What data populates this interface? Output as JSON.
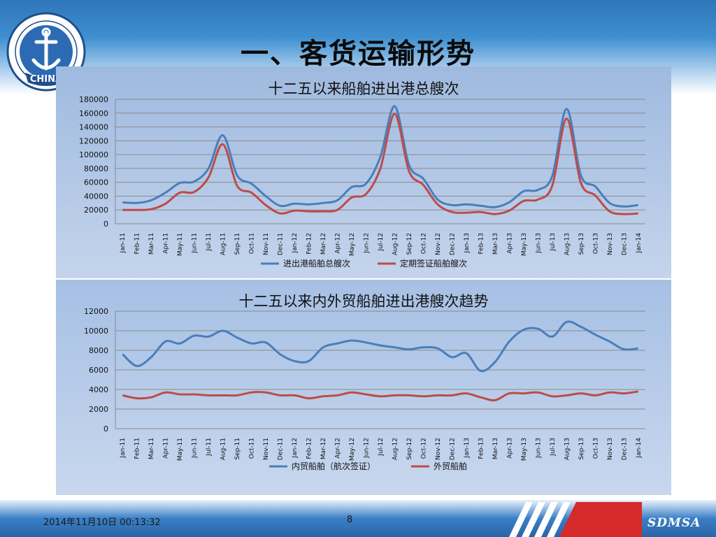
{
  "slide": {
    "title": "一、客货运输形势",
    "footer_date": "2014年11月10日  00:13:32",
    "page_number": "8",
    "brand": "SDMSA",
    "logo_text": "CHINA"
  },
  "colors": {
    "blue_series": "#4a7ebb",
    "red_series": "#be4b48"
  },
  "chart_data": [
    {
      "type": "line",
      "title": "十二五以来船舶进出港总艘次",
      "xlabel": "",
      "ylabel": "",
      "ylim": [
        0,
        180000
      ],
      "yticks": [
        "180000",
        "160000",
        "140000",
        "120000",
        "100000",
        "80000",
        "60000",
        "40000",
        "20000",
        "0"
      ],
      "legend_position": "bottom",
      "categories": [
        "Jan-11",
        "Feb-11",
        "Mar-11",
        "Apr-11",
        "May-11",
        "Jun-11",
        "Jul-11",
        "Aug-11",
        "Sep-11",
        "Oct-11",
        "Nov-11",
        "Dec-11",
        "Jan-12",
        "Feb-12",
        "Mar-12",
        "Apr-12",
        "May-12",
        "Jun-12",
        "Jul-12",
        "Aug-12",
        "Sep-12",
        "Oct-12",
        "Nov-12",
        "Dec-12",
        "Jan-13",
        "Feb-13",
        "Mar-13",
        "Apr-13",
        "May-13",
        "Jun-13",
        "Jul-13",
        "Aug-13",
        "Sep-13",
        "Oct-13",
        "Nov-13",
        "Dec-13",
        "Jan-14"
      ],
      "series": [
        {
          "name": "进出港船舶总艘次",
          "color": "#4a7ebb",
          "values": [
            31000,
            30000,
            34000,
            45000,
            59000,
            61000,
            80000,
            128000,
            70000,
            58000,
            40000,
            26000,
            29000,
            28000,
            30000,
            34000,
            53000,
            58000,
            97000,
            170000,
            85000,
            65000,
            35000,
            27000,
            28000,
            26000,
            24000,
            31000,
            47000,
            49000,
            69000,
            166000,
            70000,
            54000,
            30000,
            25000,
            27000
          ]
        },
        {
          "name": "定期签证船舶艘次",
          "color": "#be4b48",
          "values": [
            20000,
            20000,
            21000,
            29000,
            45000,
            46000,
            67000,
            115000,
            55000,
            45000,
            27000,
            15000,
            19000,
            18000,
            18000,
            20000,
            38000,
            43000,
            80000,
            159000,
            76000,
            56000,
            28000,
            17000,
            16000,
            17000,
            14000,
            19000,
            33000,
            35000,
            55000,
            152000,
            59000,
            41000,
            18000,
            14000,
            15000
          ]
        }
      ]
    },
    {
      "type": "line",
      "title": "十二五以来内外贸船舶进出港艘次趋势",
      "xlabel": "",
      "ylabel": "",
      "ylim": [
        0,
        12000
      ],
      "yticks": [
        "12000",
        "10000",
        "8000",
        "6000",
        "4000",
        "2000",
        "0"
      ],
      "legend_position": "bottom",
      "categories": [
        "Jan-11",
        "Feb-11",
        "Mar-11",
        "Apr-11",
        "May-11",
        "Jun-11",
        "Jul-11",
        "Aug-11",
        "Sep-11",
        "Oct-11",
        "Nov-11",
        "Dec-11",
        "Jan-12",
        "Feb-12",
        "Mar-12",
        "Apr-12",
        "May-12",
        "Jun-12",
        "Jul-12",
        "Aug-12",
        "Sep-12",
        "Oct-12",
        "Nov-12",
        "Dec-12",
        "Jan-13",
        "Feb-13",
        "Mar-13",
        "Apr-13",
        "May-13",
        "Jun-13",
        "Jul-13",
        "Aug-13",
        "Sep-13",
        "Oct-13",
        "Nov-13",
        "Dec-13",
        "Jan-14"
      ],
      "series": [
        {
          "name": "内贸船舶（航次签证）",
          "color": "#4a7ebb",
          "values": [
            7600,
            6400,
            7300,
            8900,
            8700,
            9500,
            9400,
            10000,
            9300,
            8700,
            8800,
            7600,
            6900,
            6900,
            8300,
            8700,
            9000,
            8800,
            8500,
            8300,
            8100,
            8300,
            8200,
            7300,
            7700,
            5900,
            6800,
            8900,
            10100,
            10200,
            9400,
            10900,
            10400,
            9600,
            8900,
            8100,
            8200
          ]
        },
        {
          "name": "外贸船舶",
          "color": "#be4b48",
          "values": [
            3400,
            3100,
            3200,
            3700,
            3500,
            3500,
            3400,
            3400,
            3400,
            3700,
            3700,
            3400,
            3400,
            3100,
            3300,
            3400,
            3700,
            3500,
            3300,
            3400,
            3400,
            3300,
            3400,
            3400,
            3600,
            3200,
            2900,
            3600,
            3600,
            3700,
            3300,
            3400,
            3600,
            3400,
            3700,
            3600,
            3800
          ]
        }
      ]
    }
  ]
}
